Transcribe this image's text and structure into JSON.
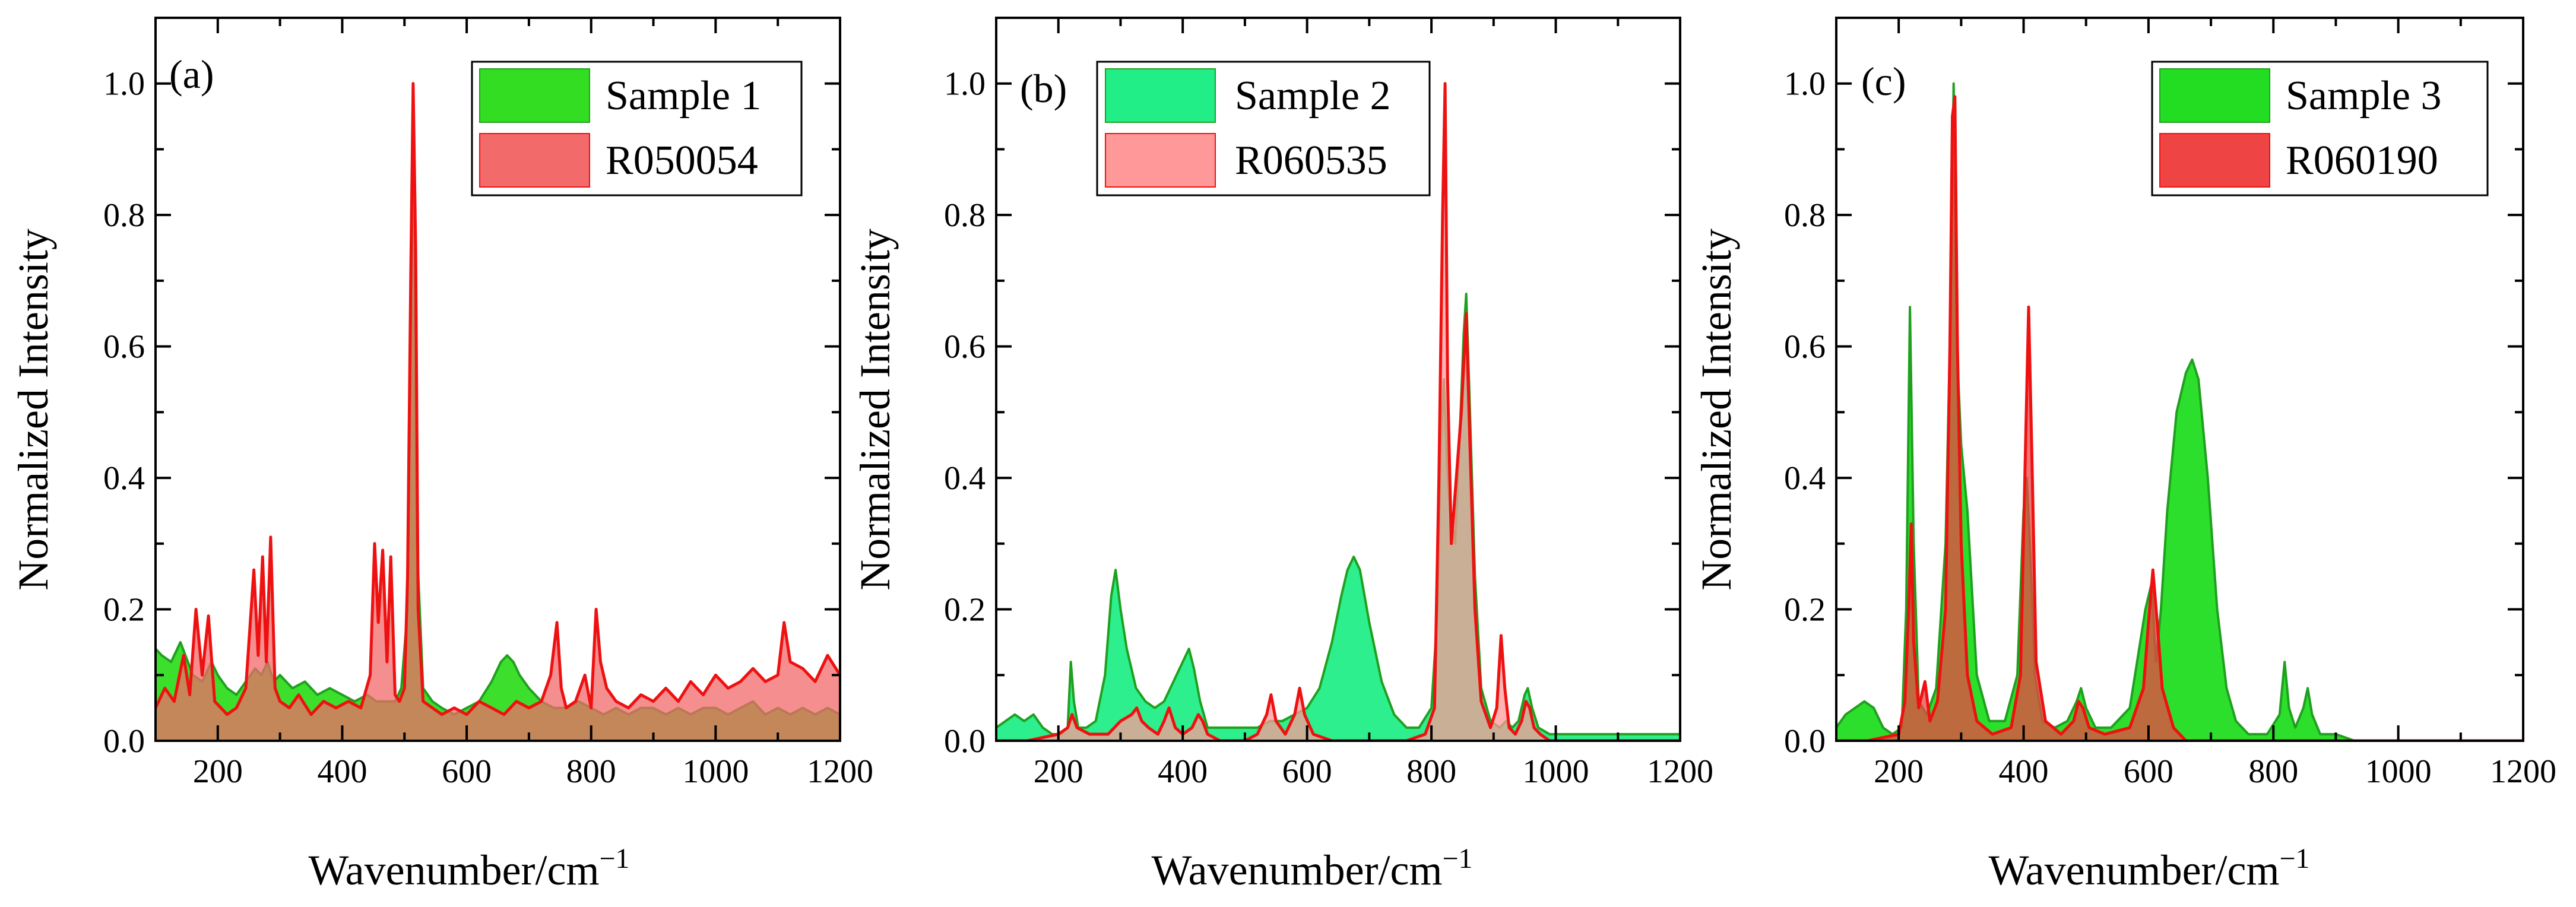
{
  "colors": {
    "sample1_fill": "#33dd22",
    "sample1_line": "#1fa01f",
    "sample2_fill": "#22ee88",
    "sample2_line": "#1fa01f",
    "sample3_fill": "#22dd22",
    "sample3_line": "#1fa01f",
    "ref_line": "#ee1111",
    "ref_fill_a": "#f26a6a",
    "ref_fill_b": "#ff9999",
    "ref_fill_c": "#ee4444",
    "overlap_fill": "#8a8a1e"
  },
  "chart_data": [
    {
      "panel": "(a)",
      "type": "area",
      "xlabel": "Wavenumber/cm",
      "xlabel_sup": "−1",
      "ylabel": "Normalized Intensity",
      "xlim": [
        100,
        1200
      ],
      "ylim": [
        0,
        1.1
      ],
      "xticks": [
        200,
        400,
        600,
        800,
        1000,
        1200
      ],
      "yticks": [
        0.0,
        0.2,
        0.4,
        0.6,
        0.8,
        1.0
      ],
      "ytick_labels": [
        "0.0",
        "0.2",
        "0.4",
        "0.6",
        "0.8",
        "1.0"
      ],
      "legend_position": "top-right",
      "series": [
        {
          "name": "Sample 1",
          "role": "sample",
          "x": [
            100,
            110,
            125,
            140,
            160,
            175,
            190,
            200,
            215,
            230,
            245,
            260,
            270,
            280,
            290,
            300,
            320,
            340,
            360,
            380,
            400,
            420,
            440,
            455,
            470,
            485,
            495,
            505,
            510,
            515,
            520,
            530,
            545,
            560,
            580,
            600,
            620,
            640,
            655,
            665,
            675,
            685,
            700,
            720,
            740,
            760,
            780,
            800,
            820,
            840,
            860,
            880,
            900,
            920,
            940,
            960,
            980,
            1000,
            1020,
            1040,
            1060,
            1080,
            1100,
            1120,
            1140,
            1160,
            1180,
            1200
          ],
          "y": [
            0.14,
            0.13,
            0.12,
            0.15,
            0.1,
            0.09,
            0.12,
            0.1,
            0.08,
            0.07,
            0.09,
            0.11,
            0.1,
            0.12,
            0.09,
            0.1,
            0.08,
            0.09,
            0.07,
            0.08,
            0.07,
            0.06,
            0.07,
            0.06,
            0.06,
            0.06,
            0.08,
            0.2,
            0.58,
            0.95,
            0.3,
            0.08,
            0.06,
            0.05,
            0.04,
            0.05,
            0.06,
            0.09,
            0.12,
            0.13,
            0.12,
            0.1,
            0.08,
            0.06,
            0.05,
            0.05,
            0.06,
            0.05,
            0.04,
            0.05,
            0.04,
            0.05,
            0.05,
            0.04,
            0.05,
            0.04,
            0.05,
            0.05,
            0.04,
            0.05,
            0.06,
            0.04,
            0.05,
            0.04,
            0.05,
            0.04,
            0.05,
            0.04
          ]
        },
        {
          "name": "R050054",
          "role": "reference",
          "x": [
            100,
            115,
            130,
            145,
            155,
            165,
            175,
            185,
            195,
            205,
            215,
            230,
            245,
            258,
            265,
            272,
            278,
            285,
            292,
            300,
            315,
            330,
            350,
            370,
            390,
            410,
            430,
            445,
            452,
            458,
            465,
            472,
            478,
            485,
            492,
            500,
            505,
            510,
            514,
            518,
            522,
            530,
            545,
            560,
            580,
            600,
            620,
            640,
            660,
            680,
            700,
            720,
            735,
            745,
            752,
            760,
            775,
            790,
            800,
            808,
            815,
            825,
            840,
            860,
            880,
            900,
            920,
            940,
            960,
            980,
            1000,
            1020,
            1040,
            1060,
            1080,
            1100,
            1110,
            1120,
            1140,
            1160,
            1180,
            1200
          ],
          "y": [
            0.05,
            0.08,
            0.06,
            0.13,
            0.07,
            0.2,
            0.1,
            0.19,
            0.06,
            0.05,
            0.04,
            0.05,
            0.08,
            0.26,
            0.13,
            0.28,
            0.12,
            0.31,
            0.08,
            0.06,
            0.05,
            0.07,
            0.04,
            0.06,
            0.05,
            0.06,
            0.05,
            0.1,
            0.3,
            0.18,
            0.29,
            0.12,
            0.28,
            0.07,
            0.06,
            0.08,
            0.25,
            0.7,
            1.0,
            0.75,
            0.2,
            0.06,
            0.05,
            0.04,
            0.05,
            0.04,
            0.06,
            0.05,
            0.04,
            0.06,
            0.05,
            0.06,
            0.1,
            0.18,
            0.08,
            0.05,
            0.06,
            0.1,
            0.05,
            0.2,
            0.12,
            0.08,
            0.06,
            0.05,
            0.07,
            0.06,
            0.08,
            0.06,
            0.09,
            0.07,
            0.1,
            0.08,
            0.09,
            0.11,
            0.09,
            0.1,
            0.18,
            0.12,
            0.11,
            0.09,
            0.13,
            0.1
          ]
        }
      ]
    },
    {
      "panel": "(b)",
      "type": "area",
      "xlabel": "Wavenumber/cm",
      "xlabel_sup": "−1",
      "ylabel": "Normalized Intensity",
      "xlim": [
        100,
        1200
      ],
      "ylim": [
        0,
        1.1
      ],
      "xticks": [
        200,
        400,
        600,
        800,
        1000,
        1200
      ],
      "yticks": [
        0.0,
        0.2,
        0.4,
        0.6,
        0.8,
        1.0
      ],
      "ytick_labels": [
        "0.0",
        "0.2",
        "0.4",
        "0.6",
        "0.8",
        "1.0"
      ],
      "legend_position": "top-left",
      "series": [
        {
          "name": "Sample 2",
          "role": "sample",
          "x": [
            100,
            115,
            130,
            145,
            160,
            175,
            190,
            205,
            215,
            220,
            225,
            232,
            245,
            260,
            275,
            285,
            292,
            300,
            310,
            325,
            340,
            355,
            370,
            385,
            400,
            410,
            418,
            428,
            440,
            460,
            480,
            500,
            520,
            540,
            560,
            580,
            600,
            620,
            640,
            655,
            665,
            675,
            685,
            700,
            720,
            740,
            760,
            780,
            800,
            810,
            815,
            820,
            825,
            830,
            838,
            845,
            852,
            856,
            862,
            870,
            880,
            895,
            910,
            920,
            930,
            940,
            950,
            955,
            962,
            972,
            990,
            1010,
            1040,
            1070,
            1100,
            1130,
            1160,
            1180,
            1200
          ],
          "y": [
            0.02,
            0.03,
            0.04,
            0.03,
            0.04,
            0.02,
            0.01,
            0.01,
            0.02,
            0.12,
            0.06,
            0.02,
            0.02,
            0.03,
            0.1,
            0.22,
            0.26,
            0.2,
            0.14,
            0.08,
            0.06,
            0.05,
            0.06,
            0.09,
            0.12,
            0.14,
            0.11,
            0.06,
            0.02,
            0.02,
            0.02,
            0.02,
            0.02,
            0.03,
            0.03,
            0.04,
            0.05,
            0.08,
            0.15,
            0.22,
            0.26,
            0.28,
            0.26,
            0.18,
            0.09,
            0.04,
            0.02,
            0.02,
            0.05,
            0.2,
            0.45,
            0.55,
            0.42,
            0.35,
            0.3,
            0.45,
            0.62,
            0.68,
            0.5,
            0.25,
            0.08,
            0.03,
            0.02,
            0.03,
            0.02,
            0.03,
            0.07,
            0.08,
            0.05,
            0.02,
            0.01,
            0.01,
            0.01,
            0.01,
            0.01,
            0.01,
            0.01,
            0.01,
            0.01
          ]
        },
        {
          "name": "R060535",
          "role": "reference",
          "x": [
            100,
            150,
            200,
            215,
            222,
            230,
            250,
            280,
            300,
            318,
            326,
            334,
            345,
            360,
            370,
            378,
            388,
            400,
            415,
            425,
            432,
            440,
            460,
            500,
            520,
            535,
            542,
            550,
            565,
            580,
            588,
            596,
            610,
            640,
            680,
            720,
            760,
            790,
            805,
            812,
            818,
            822,
            826,
            832,
            840,
            848,
            856,
            862,
            870,
            880,
            895,
            905,
            912,
            918,
            925,
            935,
            945,
            952,
            958,
            965,
            975,
            990,
            1010,
            1050,
            1100,
            1150,
            1200
          ],
          "y": [
            0.0,
            0.0,
            0.01,
            0.02,
            0.04,
            0.02,
            0.01,
            0.01,
            0.03,
            0.04,
            0.05,
            0.03,
            0.02,
            0.01,
            0.03,
            0.05,
            0.02,
            0.01,
            0.02,
            0.04,
            0.03,
            0.01,
            0.0,
            0.0,
            0.01,
            0.04,
            0.07,
            0.03,
            0.01,
            0.04,
            0.08,
            0.04,
            0.01,
            0.0,
            0.0,
            0.0,
            0.0,
            0.01,
            0.05,
            0.4,
            0.8,
            1.0,
            0.55,
            0.3,
            0.4,
            0.5,
            0.65,
            0.45,
            0.2,
            0.06,
            0.02,
            0.05,
            0.16,
            0.08,
            0.02,
            0.01,
            0.03,
            0.06,
            0.05,
            0.02,
            0.01,
            0.0,
            0.0,
            0.0,
            0.0,
            0.0,
            0.0
          ]
        }
      ]
    },
    {
      "panel": "(c)",
      "type": "area",
      "xlabel": "Wavenumber/cm",
      "xlabel_sup": "−1",
      "ylabel": "Normalized Intensity",
      "xlim": [
        100,
        1200
      ],
      "ylim": [
        0,
        1.1
      ],
      "xticks": [
        200,
        400,
        600,
        800,
        1000,
        1200
      ],
      "yticks": [
        0.0,
        0.2,
        0.4,
        0.6,
        0.8,
        1.0
      ],
      "ytick_labels": [
        "0.0",
        "0.2",
        "0.4",
        "0.6",
        "0.8",
        "1.0"
      ],
      "legend_position": "top-right",
      "series": [
        {
          "name": "Sample 3",
          "role": "sample",
          "x": [
            100,
            115,
            130,
            145,
            160,
            175,
            190,
            205,
            212,
            218,
            224,
            232,
            245,
            260,
            275,
            283,
            288,
            293,
            300,
            310,
            325,
            345,
            370,
            390,
            400,
            405,
            410,
            418,
            430,
            450,
            470,
            485,
            492,
            500,
            515,
            540,
            570,
            595,
            605,
            612,
            620,
            630,
            645,
            660,
            670,
            680,
            695,
            710,
            725,
            740,
            760,
            790,
            810,
            818,
            825,
            835,
            848,
            855,
            862,
            875,
            900,
            930,
            960,
            1000,
            1050,
            1100,
            1150,
            1200
          ],
          "y": [
            0.02,
            0.04,
            0.05,
            0.06,
            0.05,
            0.02,
            0.01,
            0.02,
            0.2,
            0.66,
            0.3,
            0.06,
            0.04,
            0.08,
            0.3,
            0.65,
            1.0,
            0.6,
            0.45,
            0.35,
            0.1,
            0.03,
            0.03,
            0.1,
            0.35,
            0.4,
            0.3,
            0.1,
            0.03,
            0.02,
            0.03,
            0.06,
            0.08,
            0.05,
            0.02,
            0.02,
            0.05,
            0.2,
            0.24,
            0.12,
            0.2,
            0.35,
            0.5,
            0.56,
            0.58,
            0.55,
            0.4,
            0.2,
            0.08,
            0.03,
            0.01,
            0.01,
            0.04,
            0.12,
            0.05,
            0.02,
            0.05,
            0.08,
            0.04,
            0.01,
            0.01,
            0.0,
            0.0,
            0.0,
            0.0,
            0.0,
            0.0,
            0.0
          ]
        },
        {
          "name": "R060190",
          "role": "reference",
          "x": [
            100,
            150,
            200,
            210,
            216,
            220,
            224,
            232,
            242,
            250,
            262,
            275,
            282,
            286,
            290,
            294,
            300,
            310,
            325,
            350,
            380,
            395,
            402,
            408,
            414,
            420,
            435,
            460,
            480,
            488,
            495,
            505,
            530,
            570,
            592,
            600,
            607,
            614,
            622,
            640,
            660,
            700,
            800,
            900,
            1000,
            1100,
            1200
          ],
          "y": [
            0.0,
            0.0,
            0.01,
            0.06,
            0.2,
            0.33,
            0.15,
            0.05,
            0.09,
            0.03,
            0.06,
            0.2,
            0.6,
            0.95,
            0.98,
            0.6,
            0.3,
            0.1,
            0.03,
            0.01,
            0.02,
            0.1,
            0.4,
            0.66,
            0.4,
            0.12,
            0.03,
            0.01,
            0.03,
            0.06,
            0.05,
            0.02,
            0.01,
            0.02,
            0.08,
            0.18,
            0.26,
            0.18,
            0.08,
            0.02,
            0.0,
            0.0,
            0.0,
            0.0,
            0.0,
            0.0,
            0.0
          ]
        }
      ]
    }
  ]
}
